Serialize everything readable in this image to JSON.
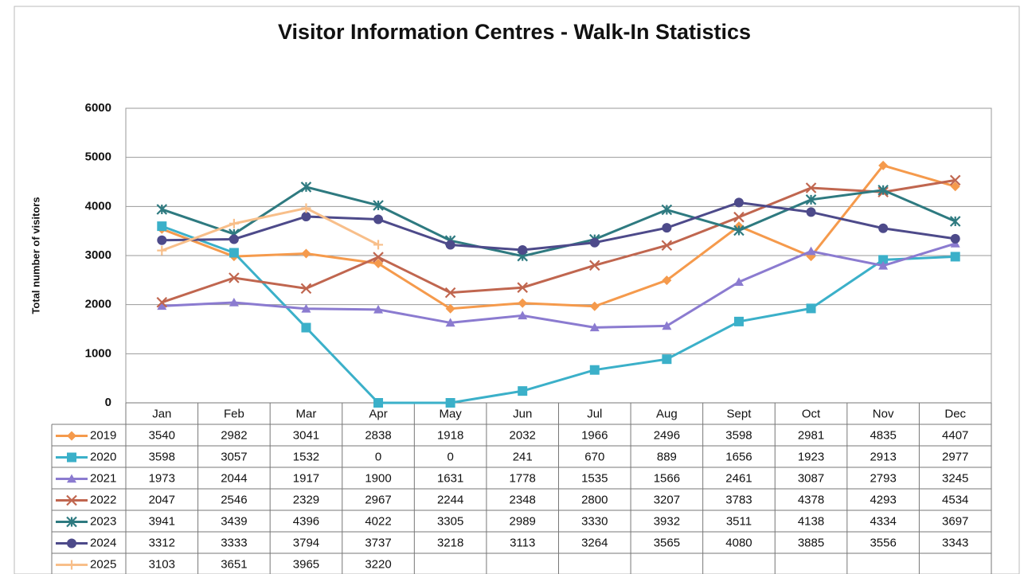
{
  "chart_data": {
    "type": "line",
    "title": "Visitor Information Centres - Walk-In Statistics",
    "y_label": "Total number of visitors",
    "categories": [
      "Jan",
      "Feb",
      "Mar",
      "Apr",
      "May",
      "Jun",
      "Jul",
      "Aug",
      "Sept",
      "Oct",
      "Nov",
      "Dec"
    ],
    "ylim": [
      0,
      6000
    ],
    "yticks": [
      0,
      1000,
      2000,
      3000,
      4000,
      5000,
      6000
    ],
    "grid": true,
    "series": [
      {
        "name": "2019",
        "color": "#f59a4c",
        "marker": "diamond",
        "values": [
          3540,
          2982,
          3041,
          2838,
          1918,
          2032,
          1966,
          2496,
          3598,
          2981,
          4835,
          4407
        ]
      },
      {
        "name": "2020",
        "color": "#3bb0c9",
        "marker": "square",
        "values": [
          3598,
          3057,
          1532,
          0,
          0,
          241,
          670,
          889,
          1656,
          1923,
          2913,
          2977
        ]
      },
      {
        "name": "2021",
        "color": "#8b7bd0",
        "marker": "triangle",
        "values": [
          1973,
          2044,
          1917,
          1900,
          1631,
          1778,
          1535,
          1566,
          2461,
          3087,
          2793,
          3245
        ]
      },
      {
        "name": "2022",
        "color": "#c0664f",
        "marker": "x",
        "values": [
          2047,
          2546,
          2329,
          2967,
          2244,
          2348,
          2800,
          3207,
          3783,
          4378,
          4293,
          4534
        ]
      },
      {
        "name": "2023",
        "color": "#2e7a80",
        "marker": "star",
        "values": [
          3941,
          3439,
          4396,
          4022,
          3305,
          2989,
          3330,
          3932,
          3511,
          4138,
          4334,
          3697
        ]
      },
      {
        "name": "2024",
        "color": "#4d4a8a",
        "marker": "circle",
        "values": [
          3312,
          3333,
          3794,
          3737,
          3218,
          3113,
          3264,
          3565,
          4080,
          3885,
          3556,
          3343
        ]
      },
      {
        "name": "2025",
        "color": "#f8bf8a",
        "marker": "plus",
        "values": [
          3103,
          3651,
          3965,
          3220,
          null,
          null,
          null,
          null,
          null,
          null,
          null,
          null
        ]
      }
    ]
  }
}
